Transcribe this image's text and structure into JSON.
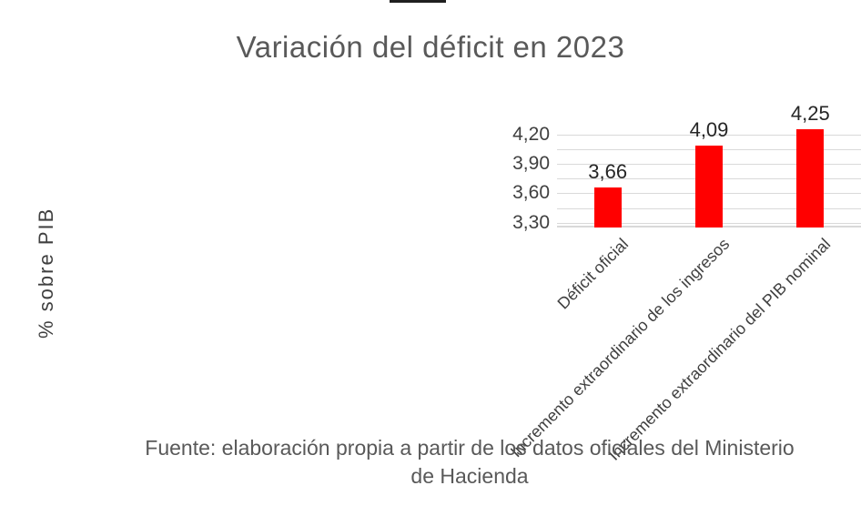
{
  "chart_data": {
    "type": "bar",
    "title": "Variación del déficit en 2023",
    "ylabel": "% sobre PIB",
    "xlabel": "",
    "categories": [
      "Déficit oficial",
      "Incremento extraordinario de los ingresos",
      "Incremento extraordinario del PIB nominal"
    ],
    "values": [
      3.66,
      4.09,
      4.25
    ],
    "value_labels": [
      "3,66",
      "4,09",
      "4,25"
    ],
    "bar_color": "#ff0000",
    "ylim": [
      3.25,
      4.3
    ],
    "yticks": [
      {
        "value": 3.3,
        "label": "3,30"
      },
      {
        "value": 3.6,
        "label": "3,60"
      },
      {
        "value": 3.9,
        "label": "3,90"
      },
      {
        "value": 4.2,
        "label": "4,20"
      }
    ],
    "minor_tick_step": 0.15,
    "grid": true,
    "legend": false
  },
  "source_note": "Fuente: elaboración propia a partir de los datos oficiales del Ministerio de Hacienda",
  "colors": {
    "background": "#ffffff",
    "title": "#595959",
    "axis_text": "#404040",
    "value_label": "#262626",
    "gridline": "#d9d9d9",
    "bar": "#ff0000",
    "source_text": "#595959"
  }
}
